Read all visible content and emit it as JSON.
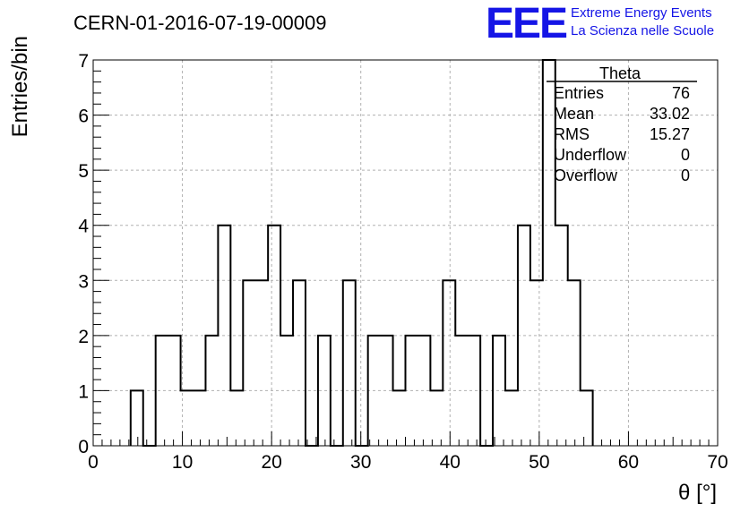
{
  "header": {
    "title": "CERN-01-2016-07-19-00009",
    "logo_mark": "EEE",
    "logo_line1": "Extreme Energy Events",
    "logo_line2": "La Scienza nelle Scuole"
  },
  "stats_box": {
    "title": "Theta",
    "rows": [
      {
        "label": "Entries",
        "value": "76"
      },
      {
        "label": "Mean",
        "value": "33.02"
      },
      {
        "label": "RMS",
        "value": "15.27"
      },
      {
        "label": "Underflow",
        "value": "0"
      },
      {
        "label": "Overflow",
        "value": "0"
      }
    ]
  },
  "colors": {
    "logo": "#1515e6",
    "line": "#000000",
    "grid": "#b0b0b0"
  },
  "chart_data": {
    "type": "bar",
    "style": "step-histogram",
    "xlabel": "θ [°]",
    "ylabel": "Entries/bin",
    "xlim": [
      0,
      70
    ],
    "ylim": [
      0,
      7
    ],
    "x_ticks": [
      0,
      10,
      20,
      30,
      40,
      50,
      60,
      70
    ],
    "y_ticks": [
      0,
      1,
      2,
      3,
      4,
      5,
      6,
      7
    ],
    "grid": true,
    "bin_edges": [
      4.2,
      5.6,
      7.0,
      8.4,
      9.8,
      11.2,
      12.6,
      14.0,
      15.4,
      16.8,
      18.2,
      19.6,
      21.0,
      22.4,
      23.8,
      25.2,
      26.6,
      28.0,
      29.4,
      30.8,
      32.2,
      33.6,
      35.0,
      36.4,
      37.8,
      39.2,
      40.6,
      42.0,
      43.4,
      44.8,
      46.2,
      47.6,
      49.0,
      50.4,
      51.8,
      53.2,
      54.6,
      56.0
    ],
    "values": [
      1,
      0,
      2,
      2,
      1,
      1,
      2,
      4,
      1,
      3,
      3,
      4,
      2,
      3,
      0,
      2,
      0,
      3,
      0,
      2,
      2,
      1,
      2,
      2,
      1,
      3,
      2,
      2,
      0,
      2,
      1,
      4,
      3,
      7,
      4,
      3,
      1
    ]
  }
}
